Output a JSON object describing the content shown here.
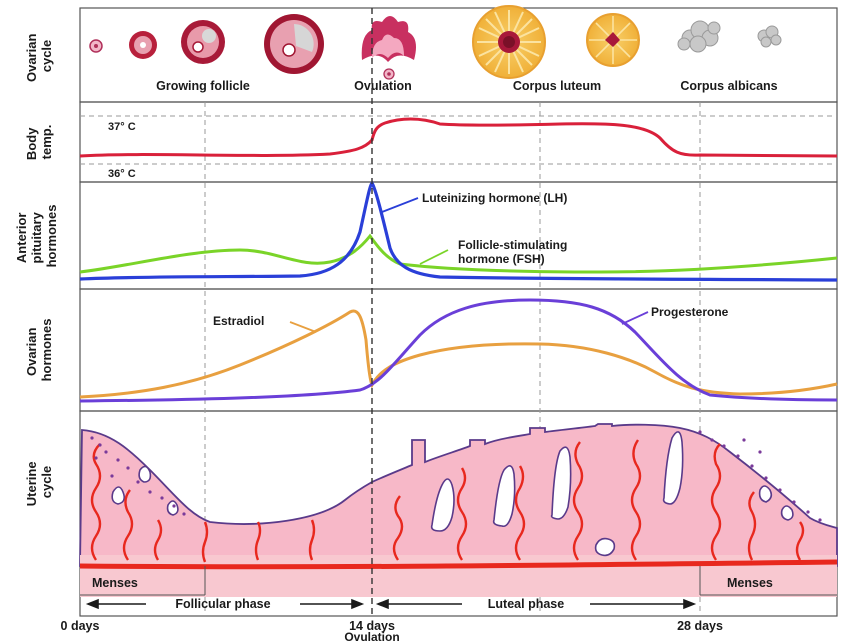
{
  "panels": {
    "ovarian_cycle": {
      "label_line1": "Ovarian",
      "label_line2": "cycle"
    },
    "body_temp": {
      "label_line1": "Body",
      "label_line2": "temp."
    },
    "pituitary": {
      "label_line1": "Anterior",
      "label_line2": "pituitary",
      "label_line3": "hormones"
    },
    "ovarian_hormones": {
      "label_line1": "Ovarian",
      "label_line2": "hormones"
    },
    "uterine_cycle": {
      "label_line1": "Uterine",
      "label_line2": "cycle"
    }
  },
  "ovary_stages": {
    "growing": "Growing follicle",
    "ovulation": "Ovulation",
    "luteum": "Corpus luteum",
    "albicans": "Corpus albicans"
  },
  "temperature": {
    "high": "37° C",
    "low": "36° C"
  },
  "hormones": {
    "lh_line1": "Luteinizing hormone (LH)",
    "fsh_line1": "Follicle-stimulating",
    "fsh_line2": "hormone (FSH)",
    "estradiol": "Estradiol",
    "progesterone": "Progesterone"
  },
  "phases": {
    "menses_left": "Menses",
    "menses_right": "Menses",
    "follicular": "Follicular phase",
    "luteal": "Luteal phase"
  },
  "timeline": {
    "day0": "0 days",
    "day14": "14 days",
    "ovulation": "Ovulation",
    "day28": "28 days"
  },
  "colors": {
    "temperature": "#d9203a",
    "lh": "#2a3fd8",
    "fsh": "#7ad428",
    "estradiol": "#e8a040",
    "progesterone": "#6a3fd8",
    "endometrium": "#f7b8c8",
    "vessel": "#e8281e"
  }
}
